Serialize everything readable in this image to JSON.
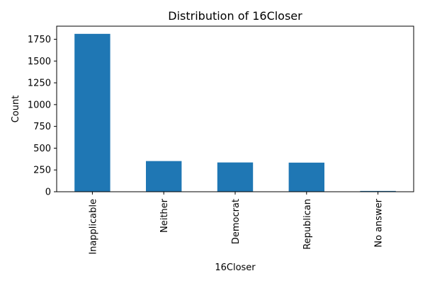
{
  "chart_data": {
    "type": "bar",
    "title": "Distribution of 16Closer",
    "xlabel": "16Closer",
    "ylabel": "Count",
    "categories": [
      "Inapplicable",
      "Neither",
      "Democrat",
      "Republican",
      "No answer"
    ],
    "values": [
      1812,
      352,
      336,
      334,
      9
    ],
    "ylim": [
      0,
      1900
    ],
    "yticks": [
      0,
      250,
      500,
      750,
      1000,
      1250,
      1500,
      1750
    ],
    "grid": false,
    "bar_color": "#1f77b4"
  }
}
